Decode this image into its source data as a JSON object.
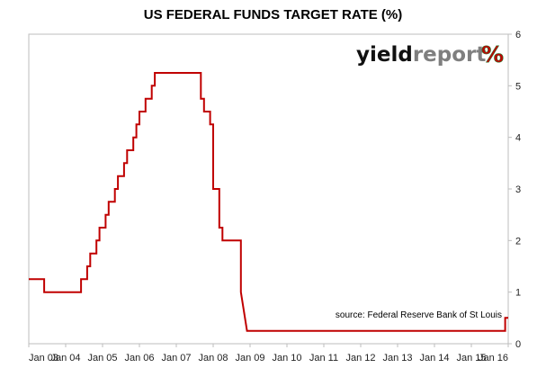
{
  "chart_data": {
    "type": "line",
    "title": "US FEDERAL FUNDS TARGET RATE (%)",
    "xlabel": "",
    "ylabel": "",
    "xlim": [
      "2003-01",
      "2016-01"
    ],
    "ylim": [
      0,
      6
    ],
    "x_ticks": [
      "Jan 03",
      "Jan 04",
      "Jan 05",
      "Jan 06",
      "Jan 07",
      "Jan 08",
      "Jan 09",
      "Jan 10",
      "Jan 11",
      "Jan 12",
      "Jan 13",
      "Jan 14",
      "Jan 15",
      "Jan 16"
    ],
    "y_ticks": [
      "0",
      "1",
      "2",
      "3",
      "4",
      "5",
      "6"
    ],
    "y_axis_side": "right",
    "grid": false,
    "series": [
      {
        "color": "#c00000",
        "points": [
          [
            "2003-01",
            1.25
          ],
          [
            "2003-06",
            1.25
          ],
          [
            "2003-06",
            1.0
          ],
          [
            "2004-06",
            1.0
          ],
          [
            "2004-06",
            1.25
          ],
          [
            "2004-08",
            1.25
          ],
          [
            "2004-08",
            1.5
          ],
          [
            "2004-09",
            1.5
          ],
          [
            "2004-09",
            1.75
          ],
          [
            "2004-11",
            1.75
          ],
          [
            "2004-11",
            2.0
          ],
          [
            "2004-12",
            2.0
          ],
          [
            "2004-12",
            2.25
          ],
          [
            "2005-02",
            2.25
          ],
          [
            "2005-02",
            2.5
          ],
          [
            "2005-03",
            2.5
          ],
          [
            "2005-03",
            2.75
          ],
          [
            "2005-05",
            2.75
          ],
          [
            "2005-05",
            3.0
          ],
          [
            "2005-06",
            3.0
          ],
          [
            "2005-06",
            3.25
          ],
          [
            "2005-08",
            3.25
          ],
          [
            "2005-08",
            3.5
          ],
          [
            "2005-09",
            3.5
          ],
          [
            "2005-09",
            3.75
          ],
          [
            "2005-11",
            3.75
          ],
          [
            "2005-11",
            4.0
          ],
          [
            "2005-12",
            4.0
          ],
          [
            "2005-12",
            4.25
          ],
          [
            "2006-01",
            4.25
          ],
          [
            "2006-01",
            4.5
          ],
          [
            "2006-03",
            4.5
          ],
          [
            "2006-03",
            4.75
          ],
          [
            "2006-05",
            4.75
          ],
          [
            "2006-05",
            5.0
          ],
          [
            "2006-06",
            5.0
          ],
          [
            "2006-06",
            5.25
          ],
          [
            "2007-09",
            5.25
          ],
          [
            "2007-09",
            4.75
          ],
          [
            "2007-10",
            4.75
          ],
          [
            "2007-10",
            4.5
          ],
          [
            "2007-12",
            4.5
          ],
          [
            "2007-12",
            4.25
          ],
          [
            "2008-01",
            4.25
          ],
          [
            "2008-01",
            3.0
          ],
          [
            "2008-03",
            3.0
          ],
          [
            "2008-03",
            2.25
          ],
          [
            "2008-04",
            2.25
          ],
          [
            "2008-04",
            2.0
          ],
          [
            "2008-10",
            2.0
          ],
          [
            "2008-10",
            1.5
          ],
          [
            "2008-10",
            1.0
          ],
          [
            "2008-12",
            0.25
          ],
          [
            "2015-12",
            0.25
          ],
          [
            "2015-12",
            0.5
          ],
          [
            "2016-01",
            0.5
          ]
        ]
      }
    ]
  },
  "logo": {
    "word1": "yield",
    "word2": "report",
    "symbol": "%"
  },
  "source_note": "source: Federal Reserve Bank of St Louis",
  "colors": {
    "line": "#c00000",
    "logo_dark": "#111111",
    "logo_grey": "#7f7f7f",
    "logo_green": "#2e7d32",
    "logo_red": "#c00000"
  }
}
